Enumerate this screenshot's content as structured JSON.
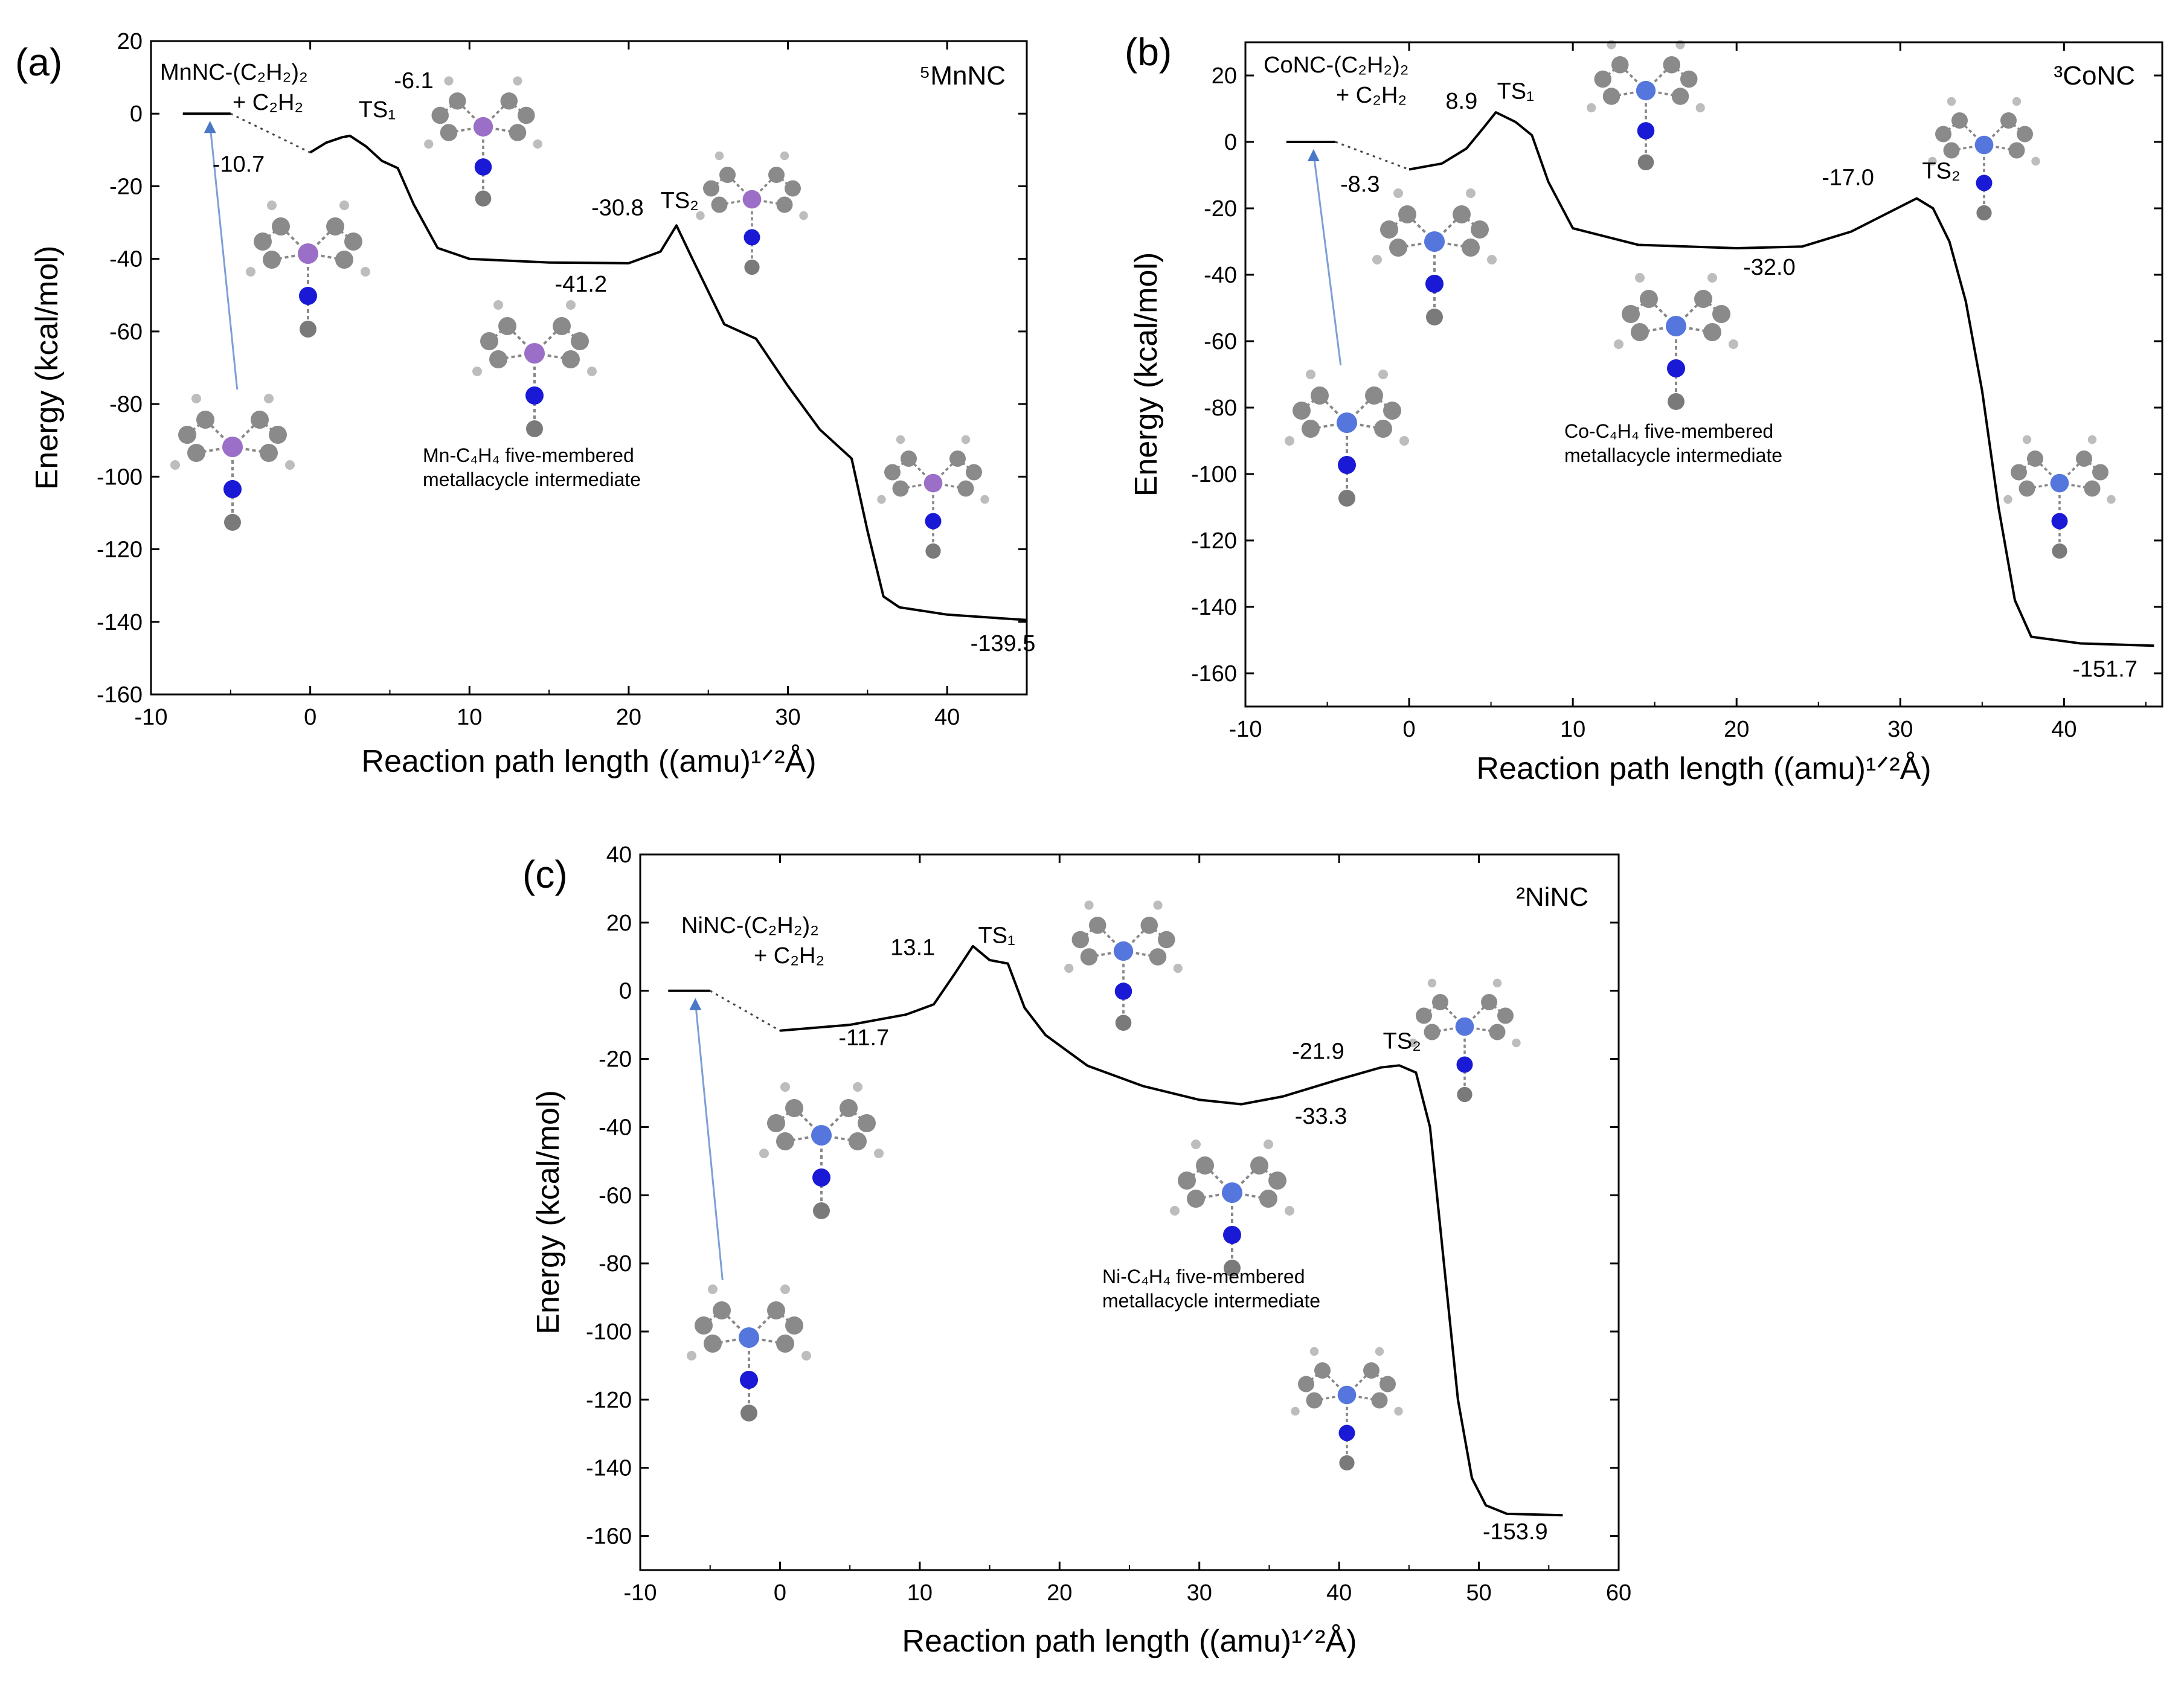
{
  "chart_data": [
    {
      "type": "line",
      "panel": "(a)",
      "state_label": "⁵MnNC",
      "xlabel": "Reaction path length ((amu)¹ᐟ²Å)",
      "ylabel": "Energy (kcal/mol)",
      "xlim": [
        -10,
        45
      ],
      "ylim": [
        -160,
        20
      ],
      "xticks": [
        -10,
        0,
        10,
        20,
        30,
        40
      ],
      "yticks": [
        20,
        0,
        -20,
        -40,
        -60,
        -80,
        -100,
        -120,
        -140,
        -160
      ],
      "reactant_label_1": "MnNC-(C₂H₂)₂",
      "reactant_label_2": "+ C₂H₂",
      "intermediate_label_1": "Mn-C₄H₄ five-membered",
      "intermediate_label_2": "metallacycle intermediate",
      "series": [
        {
          "name": "reactant",
          "x": [
            -8,
            -5
          ],
          "y": [
            0,
            0
          ]
        },
        {
          "name": "IRC",
          "x": [
            0,
            1,
            2,
            2.5,
            3.5,
            4.5,
            5.5,
            6.5,
            8,
            10,
            15,
            20,
            22,
            23,
            24,
            26,
            28,
            30,
            32,
            34,
            35,
            36,
            37,
            40,
            45
          ],
          "y": [
            -10.7,
            -8,
            -6.5,
            -6.1,
            -9,
            -13,
            -15,
            -25,
            -37,
            -40,
            -41,
            -41.2,
            -38,
            -30.8,
            -40,
            -58,
            -62,
            -75,
            -87,
            -95,
            -115,
            -133,
            -136,
            -138,
            -139.5
          ]
        }
      ],
      "connector": {
        "x": [
          -5,
          0
        ],
        "y": [
          0,
          -10.7
        ]
      },
      "labels": [
        {
          "text": "-10.7",
          "x": -4.5,
          "y": -16
        },
        {
          "text": "TS₁",
          "x": 4.2,
          "y": -1
        },
        {
          "text": "-6.1",
          "x": 6.5,
          "y": 7
        },
        {
          "text": "-30.8",
          "x": 19.3,
          "y": -28
        },
        {
          "text": "TS₂",
          "x": 23.2,
          "y": -26
        },
        {
          "text": "-41.2",
          "x": 17,
          "y": -49
        },
        {
          "text": "-139.5",
          "x": 43.5,
          "y": -148
        }
      ]
    },
    {
      "type": "line",
      "panel": "(b)",
      "state_label": "³CoNC",
      "xlabel": "Reaction path length ((amu)¹ᐟ²Å)",
      "ylabel": "Energy (kcal/mol)",
      "xlim": [
        -10,
        46
      ],
      "ylim": [
        -170,
        30
      ],
      "xticks": [
        -10,
        0,
        10,
        20,
        30,
        40
      ],
      "yticks": [
        20,
        0,
        -20,
        -40,
        -60,
        -80,
        -100,
        -120,
        -140,
        -160
      ],
      "reactant_label_1": "CoNC-(C₂H₂)₂",
      "reactant_label_2": "+ C₂H₂",
      "intermediate_label_1": "Co-C₄H₄ five-membered",
      "intermediate_label_2": "metallacycle intermediate",
      "series": [
        {
          "name": "reactant",
          "x": [
            -7.5,
            -4.5
          ],
          "y": [
            0,
            0
          ]
        },
        {
          "name": "IRC",
          "x": [
            0,
            2,
            3.5,
            4.5,
            5.3,
            6.5,
            7.5,
            8.5,
            10,
            14,
            20,
            24,
            27,
            29,
            31,
            32,
            33,
            34,
            35,
            36,
            37,
            38,
            41,
            45.5
          ],
          "y": [
            -8.3,
            -6.5,
            -2,
            4,
            8.9,
            6,
            2,
            -12,
            -26,
            -31,
            -32,
            -31.5,
            -27,
            -22,
            -17,
            -20,
            -30,
            -48,
            -75,
            -110,
            -138,
            -149,
            -151,
            -151.7
          ]
        }
      ],
      "connector": {
        "x": [
          -4.5,
          0
        ],
        "y": [
          0,
          -8.3
        ]
      },
      "labels": [
        {
          "text": "-8.3",
          "x": -3,
          "y": -15
        },
        {
          "text": "8.9",
          "x": 3.2,
          "y": 10
        },
        {
          "text": "TS₁",
          "x": 6.5,
          "y": 13
        },
        {
          "text": "-17.0",
          "x": 26.8,
          "y": -13
        },
        {
          "text": "TS₂",
          "x": 32.5,
          "y": -11
        },
        {
          "text": "-32.0",
          "x": 22,
          "y": -40
        },
        {
          "text": "-151.7",
          "x": 42.5,
          "y": -161
        }
      ]
    },
    {
      "type": "line",
      "panel": "(c)",
      "state_label": "²NiNC",
      "xlabel": "Reaction path length ((amu)¹ᐟ²Å)",
      "ylabel": "Energy (kcal/mol)",
      "xlim": [
        -10,
        60
      ],
      "ylim": [
        -170,
        40
      ],
      "xticks": [
        -10,
        0,
        10,
        20,
        30,
        40,
        50,
        60
      ],
      "yticks": [
        40,
        20,
        0,
        -20,
        -40,
        -60,
        -80,
        -100,
        -120,
        -140,
        -160
      ],
      "reactant_label_1": "NiNC-(C₂H₂)₂",
      "reactant_label_2": "+ C₂H₂",
      "intermediate_label_1": "Ni-C₄H₄ five-membered",
      "intermediate_label_2": "metallacycle intermediate",
      "series": [
        {
          "name": "reactant",
          "x": [
            -8,
            -5
          ],
          "y": [
            0,
            0
          ]
        },
        {
          "name": "IRC",
          "x": [
            0,
            5,
            9,
            11,
            12.5,
            13.8,
            15,
            16.3,
            17.5,
            19,
            22,
            26,
            30,
            33,
            36,
            40,
            43,
            44.3,
            45.5,
            46.5,
            47.5,
            48.5,
            49.5,
            50.5,
            52,
            56
          ],
          "y": [
            -11.7,
            -10,
            -7,
            -4,
            5,
            13.1,
            9,
            8,
            -5,
            -13,
            -22,
            -28,
            -32,
            -33.3,
            -31,
            -26,
            -22.5,
            -21.9,
            -24,
            -40,
            -80,
            -120,
            -143,
            -151,
            -153.5,
            -153.9
          ]
        }
      ],
      "connector": {
        "x": [
          -5,
          0
        ],
        "y": [
          0,
          -11.7
        ]
      },
      "labels": [
        {
          "text": "-11.7",
          "x": 6,
          "y": -16
        },
        {
          "text": "13.1",
          "x": 9.5,
          "y": 10.5
        },
        {
          "text": "TS₁",
          "x": 15.5,
          "y": 14
        },
        {
          "text": "-21.9",
          "x": 38.5,
          "y": -20
        },
        {
          "text": "TS₂",
          "x": 44.5,
          "y": -17
        },
        {
          "text": "-33.3",
          "x": 38.7,
          "y": -39
        },
        {
          "text": "-153.9",
          "x": 52.6,
          "y": -161
        }
      ]
    }
  ]
}
